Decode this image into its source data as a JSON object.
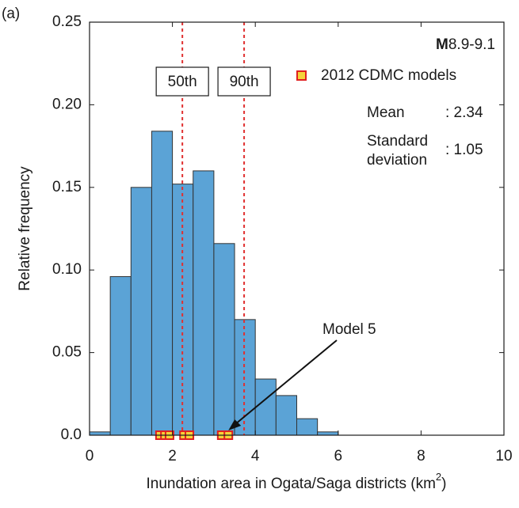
{
  "chart_data": {
    "type": "histogram",
    "panel_label": "(a)",
    "ylabel": "Relative frequency",
    "xlabel": {
      "main": "Inundation area in Ogata/Saga districts (km",
      "sup": "2",
      "end": ")"
    },
    "bins": [
      0,
      0.5,
      1,
      1.5,
      2,
      2.5,
      3,
      3.5,
      4,
      4.5,
      5,
      5.5,
      6
    ],
    "values": [
      0.002,
      0.096,
      0.15,
      0.184,
      0.152,
      0.16,
      0.116,
      0.07,
      0.034,
      0.024,
      0.01,
      0.002
    ],
    "color": "#5ba3d6",
    "edge_color": "#333333",
    "xlim": [
      0,
      10
    ],
    "ylim": [
      0,
      0.25
    ],
    "xticks": [
      0,
      2,
      4,
      6,
      8,
      10
    ],
    "yticks": [
      {
        "value": 0,
        "label": "0.0"
      },
      0.05,
      {
        "value": 0.1,
        "label": "0.10"
      },
      0.15,
      {
        "value": 0.2,
        "label": "0.20"
      },
      0.25
    ],
    "grid": false,
    "percentiles": [
      {
        "label": "50th",
        "value": 2.24
      },
      {
        "label": "90th",
        "value": 3.73
      }
    ],
    "percentile_color": "#e03030",
    "series": [
      {
        "name": "2012 CDMC models",
        "color": "#f5d33a",
        "edge": "#e02020",
        "x": [
          1.7,
          1.82,
          1.93,
          2.28,
          2.41,
          3.19,
          3.35
        ],
        "values": [
          0,
          0,
          0,
          0,
          0,
          0,
          0
        ]
      }
    ],
    "legend": "upper right",
    "magnitude": {
      "prefix": "M",
      "text": "8.9-9.1"
    },
    "stats": [
      {
        "label": "Mean",
        "value": ": 2.34"
      },
      {
        "label": [
          "Standard",
          "deviation"
        ],
        "value": ": 1.05"
      }
    ],
    "annotation": {
      "text": "Model 5",
      "x": 3.35,
      "y": 0
    }
  }
}
